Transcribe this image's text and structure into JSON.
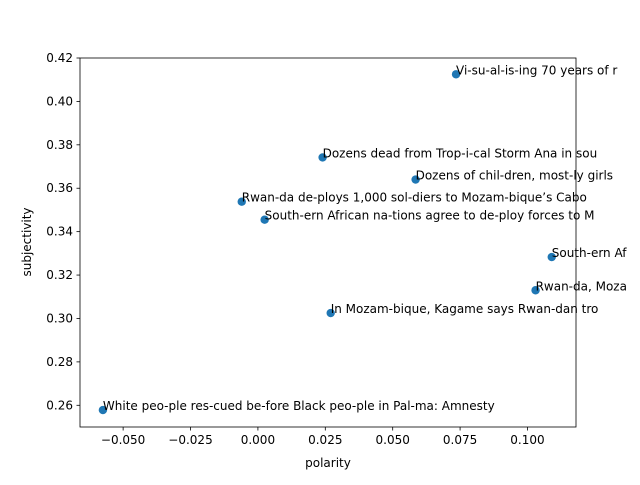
{
  "chart_data": {
    "type": "scatter",
    "title": "",
    "xlabel": "polarity",
    "ylabel": "subjectivity",
    "xlim": [
      -0.066,
      0.118
    ],
    "ylim": [
      0.25,
      0.42
    ],
    "x_ticks": [
      -0.05,
      -0.025,
      0.0,
      0.025,
      0.05,
      0.075,
      0.1
    ],
    "x_tick_labels": [
      "−0.050",
      "−0.025",
      "0.000",
      "0.025",
      "0.050",
      "0.075",
      "0.100"
    ],
    "y_ticks": [
      0.26,
      0.28,
      0.3,
      0.32,
      0.34,
      0.36,
      0.38,
      0.4,
      0.42
    ],
    "y_tick_labels": [
      "0.26",
      "0.28",
      "0.30",
      "0.32",
      "0.34",
      "0.36",
      "0.38",
      "0.40",
      "0.42"
    ],
    "grid": false,
    "marker_color": "#1f77b4",
    "points": [
      {
        "x": 0.0735,
        "y": 0.4125,
        "label": "Vi-su-al-is-ing 70 years of r"
      },
      {
        "x": 0.024,
        "y": 0.3742,
        "label": "Dozens dead from Trop-i-cal Storm Ana in sou"
      },
      {
        "x": 0.0585,
        "y": 0.364,
        "label": "Dozens of chil-dren, most-ly girls"
      },
      {
        "x": -0.006,
        "y": 0.3538,
        "label": "Rwan-da de-ploys 1,000 sol-diers to Mozam-bique’s Cabo"
      },
      {
        "x": 0.0025,
        "y": 0.3455,
        "label": "South-ern African na-tions agree to de-ploy forces to M"
      },
      {
        "x": 0.109,
        "y": 0.3283,
        "label": "South-ern Af"
      },
      {
        "x": 0.103,
        "y": 0.313,
        "label": "Rwan-da, Moza"
      },
      {
        "x": 0.027,
        "y": 0.3025,
        "label": "In Mozam-bique, Kagame says Rwan-dan tro"
      },
      {
        "x": -0.0575,
        "y": 0.2578,
        "label": "White peo-ple res-cued be-fore Black peo-ple in Pal-ma: Amnesty"
      }
    ]
  }
}
